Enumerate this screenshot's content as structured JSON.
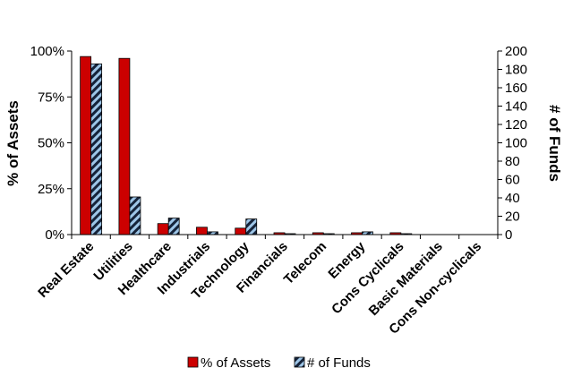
{
  "chart_data": {
    "type": "bar",
    "categories": [
      "Real Estate",
      "Utilities",
      "Healthcare",
      "Industrials",
      "Technology",
      "Financials",
      "Telecom",
      "Energy",
      "Cons Cyclicals",
      "Basic Materials",
      "Cons Non-cyclicals"
    ],
    "series": [
      {
        "name": "% of Assets",
        "axis": "left",
        "color": "#cc0000",
        "values": [
          97,
          96,
          6,
          4,
          3.5,
          1,
          1,
          1,
          1,
          0,
          0
        ]
      },
      {
        "name": "# of Funds",
        "axis": "right",
        "color": "#9ec6e8",
        "pattern": "diagonal-hatch-dark",
        "values": [
          186,
          41,
          18,
          3,
          17,
          1,
          1,
          3,
          1,
          0,
          0
        ]
      }
    ],
    "ylabel": "% of Assets",
    "ylim": [
      0,
      100
    ],
    "yticks": [
      "0%",
      "25%",
      "50%",
      "75%",
      "100%"
    ],
    "y2label": "# of Funds",
    "y2lim": [
      0,
      200
    ],
    "y2ticks": [
      "0",
      "20",
      "40",
      "60",
      "80",
      "100",
      "120",
      "140",
      "160",
      "180",
      "200"
    ],
    "legend_position": "bottom",
    "grid": false
  }
}
